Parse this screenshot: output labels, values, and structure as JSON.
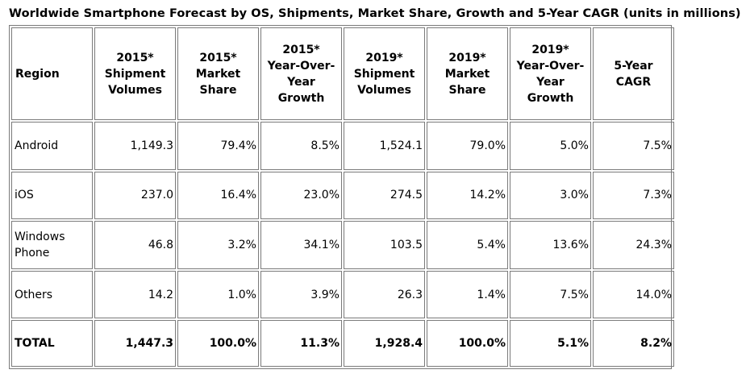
{
  "title": "Worldwide Smartphone Forecast by OS, Shipments, Market Share, Growth and 5-Year CAGR (units in millions)",
  "headers": [
    [
      "Region"
    ],
    [
      "2015*",
      "Shipment",
      "Volumes"
    ],
    [
      "2015*",
      "Market",
      "Share"
    ],
    [
      "2015*",
      "Year-Over-",
      "Year",
      "Growth"
    ],
    [
      "2019*",
      "Shipment",
      "Volumes"
    ],
    [
      "2019*",
      "Market",
      "Share"
    ],
    [
      "2019*",
      "Year-Over-",
      "Year",
      "Growth"
    ],
    [
      "5-Year",
      "CAGR"
    ]
  ],
  "rows": [
    {
      "region": [
        "Android"
      ],
      "values": [
        "1,149.3",
        "79.4%",
        "8.5%",
        "1,524.1",
        "79.0%",
        "5.0%",
        "7.5%"
      ]
    },
    {
      "region": [
        "iOS"
      ],
      "values": [
        "237.0",
        "16.4%",
        "23.0%",
        "274.5",
        "14.2%",
        "3.0%",
        "7.3%"
      ]
    },
    {
      "region": [
        "Windows",
        "Phone"
      ],
      "values": [
        "46.8",
        "3.2%",
        "34.1%",
        "103.5",
        "5.4%",
        "13.6%",
        "24.3%"
      ]
    },
    {
      "region": [
        "Others"
      ],
      "values": [
        "14.2",
        "1.0%",
        "3.9%",
        "26.3",
        "1.4%",
        "7.5%",
        "14.0%"
      ]
    }
  ],
  "total": {
    "region": "TOTAL",
    "values": [
      "1,447.3",
      "100.0%",
      "11.3%",
      "1,928.4",
      "100.0%",
      "5.1%",
      "8.2%"
    ]
  }
}
